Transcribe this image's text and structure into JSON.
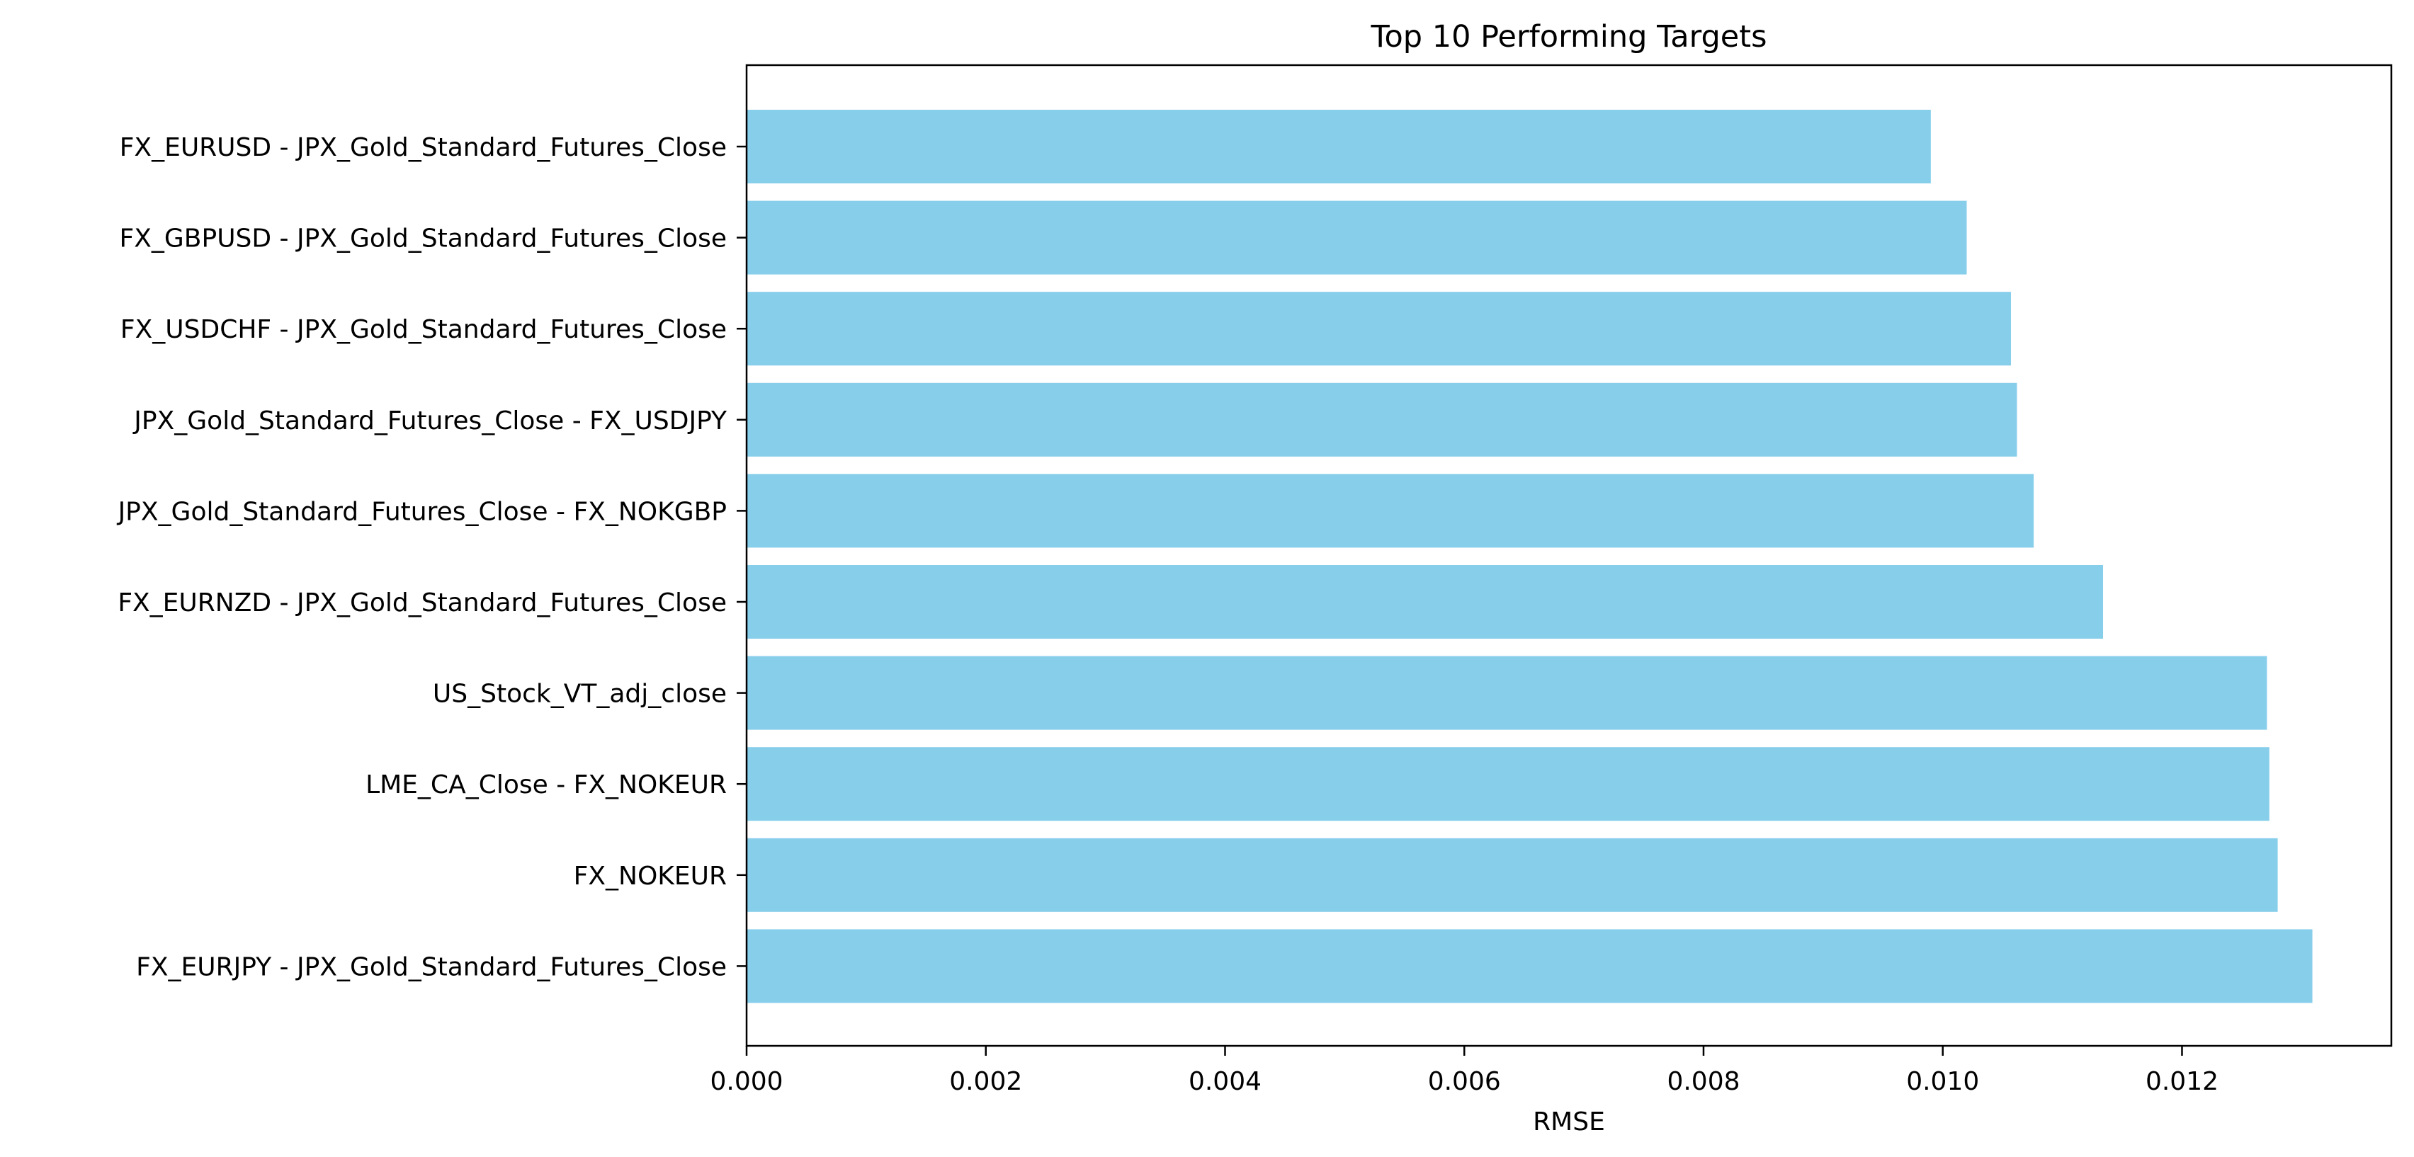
{
  "chart_data": {
    "type": "bar",
    "orientation": "horizontal",
    "title": "Top 10 Performing Targets",
    "xlabel": "RMSE",
    "ylabel": "",
    "xlim": [
      0,
      0.01375
    ],
    "x_ticks": [
      0.0,
      0.002,
      0.004,
      0.006,
      0.008,
      0.01,
      0.012
    ],
    "x_tick_labels": [
      "0.000",
      "0.002",
      "0.004",
      "0.006",
      "0.008",
      "0.010",
      "0.012"
    ],
    "bar_color": "#87ceeb",
    "grid": false,
    "categories": [
      "FX_EURUSD - JPX_Gold_Standard_Futures_Close",
      "FX_GBPUSD - JPX_Gold_Standard_Futures_Close",
      "FX_USDCHF - JPX_Gold_Standard_Futures_Close",
      "JPX_Gold_Standard_Futures_Close - FX_USDJPY",
      "JPX_Gold_Standard_Futures_Close - FX_NOKGBP",
      "FX_EURNZD - JPX_Gold_Standard_Futures_Close",
      "US_Stock_VT_adj_close",
      "LME_CA_Close - FX_NOKEUR",
      "FX_NOKEUR",
      "FX_EURJPY - JPX_Gold_Standard_Futures_Close"
    ],
    "values": [
      0.0099,
      0.0102,
      0.01057,
      0.01062,
      0.01076,
      0.01134,
      0.01271,
      0.01273,
      0.0128,
      0.01309
    ]
  }
}
